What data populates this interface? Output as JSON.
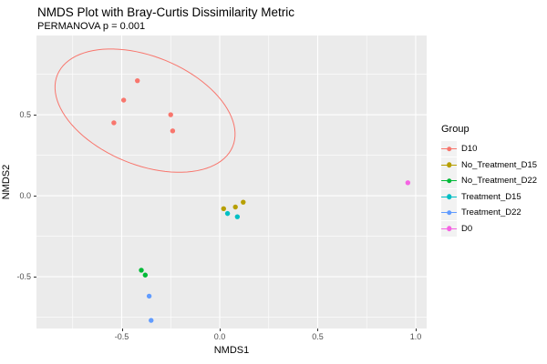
{
  "chart_data": {
    "type": "scatter",
    "title": "NMDS Plot with Bray-Curtis Dissimilarity Metric",
    "subtitle": "PERMANOVA p = 0.001",
    "xlabel": "NMDS1",
    "ylabel": "NMDS2",
    "xlim": [
      -0.935,
      1.056
    ],
    "ylim": [
      -0.82,
      0.989
    ],
    "x_ticks": [
      {
        "v": -0.5,
        "label": "-0.5"
      },
      {
        "v": 0.0,
        "label": "0.0"
      },
      {
        "v": 0.5,
        "label": "0.5"
      },
      {
        "v": 1.0,
        "label": "1.0"
      }
    ],
    "y_ticks": [
      {
        "v": 0.5,
        "label": "0.5"
      },
      {
        "v": 0.0,
        "label": "0.0"
      },
      {
        "v": -0.5,
        "label": "-0.5"
      }
    ],
    "x_minor": [
      -0.75,
      -0.25,
      0.25,
      0.75
    ],
    "y_minor": [
      0.75,
      0.25,
      -0.25,
      -0.75
    ],
    "grid": true,
    "panel_bg": "#EBEBEB",
    "grid_color": "#FFFFFF",
    "legend_position": "right",
    "legend_title": "Group",
    "series": [
      {
        "name": "D10",
        "color": "#F8766D",
        "points": [
          [
            -0.42,
            0.71
          ],
          [
            -0.49,
            0.59
          ],
          [
            -0.54,
            0.45
          ],
          [
            -0.25,
            0.5
          ],
          [
            -0.24,
            0.4
          ]
        ]
      },
      {
        "name": "No_Treatment_D15",
        "color": "#B79F00",
        "points": [
          [
            0.12,
            -0.04
          ],
          [
            0.08,
            -0.07
          ],
          [
            0.02,
            -0.08
          ]
        ]
      },
      {
        "name": "No_Treatment_D22",
        "color": "#00BA38",
        "points": [
          [
            -0.4,
            -0.46
          ],
          [
            -0.38,
            -0.49
          ]
        ]
      },
      {
        "name": "Treatment_D15",
        "color": "#00BFC4",
        "points": [
          [
            0.04,
            -0.11
          ],
          [
            0.09,
            -0.13
          ]
        ]
      },
      {
        "name": "Treatment_D22",
        "color": "#619CFF",
        "points": [
          [
            -0.36,
            -0.62
          ],
          [
            -0.35,
            -0.77
          ]
        ]
      },
      {
        "name": "D0",
        "color": "#F564E3",
        "points": [
          [
            0.96,
            0.08
          ]
        ]
      }
    ],
    "ellipse": {
      "group": "D10",
      "color": "#F8766D",
      "center": [
        -0.381,
        0.525
      ],
      "axis1": [
        0.447,
        -0.222
      ],
      "axis2": [
        -0.106,
        -0.309
      ]
    }
  }
}
